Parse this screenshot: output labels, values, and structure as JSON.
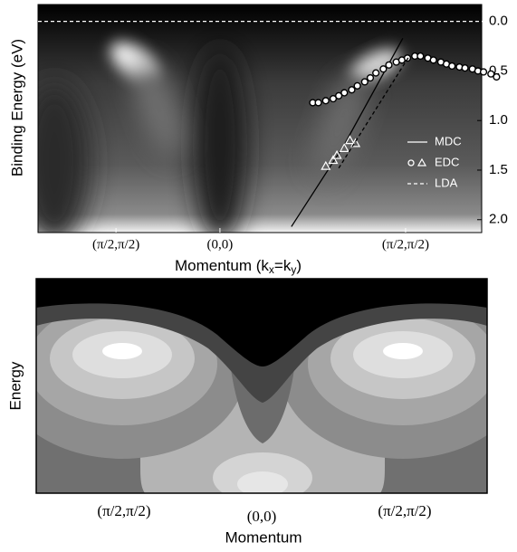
{
  "chart_data": [
    {
      "type": "scatter",
      "y_label": "Binding Energy (eV)",
      "x_label_parts": [
        "Momentum (k",
        "x",
        "=k",
        "y",
        ")"
      ],
      "xlim": [
        -0.98,
        1.41
      ],
      "xticks": [
        {
          "value": -0.56,
          "label": "(π/2,π/2)"
        },
        {
          "value": 0,
          "label": "(0,0)"
        },
        {
          "value": 1,
          "label": "(π/2,π/2)"
        }
      ],
      "ylim": [
        -0.17,
        2.13
      ],
      "yticks": [
        {
          "value": 0,
          "label": "0.0"
        },
        0.5,
        {
          "value": 1,
          "label": "1.0"
        },
        1.5,
        {
          "value": 2,
          "label": "2.0"
        }
      ],
      "y_inverted": true,
      "y_axis_side": "right",
      "fermi_line": true,
      "legend": "lower right",
      "series": [
        {
          "name": "MDC",
          "style": "solid",
          "color": "#000000",
          "x": [
            0.385,
            0.668,
            0.985
          ],
          "values": [
            2.07,
            1.25,
            0.17
          ]
        },
        {
          "name": "EDC",
          "style": "markers",
          "color": "#000000",
          "branches": [
            {
              "marker": "circle",
              "x": [
                0.5,
                0.53,
                0.57,
                0.61,
                0.64,
                0.67,
                0.71,
                0.74,
                0.78,
                0.81,
                0.84,
                0.88,
                0.91,
                0.95,
                0.98,
                1.01,
                1.05,
                1.08,
                1.12,
                1.15,
                1.19,
                1.22,
                1.25,
                1.29,
                1.32,
                1.36,
                1.39,
                1.42,
                1.46,
                1.49
              ],
              "values": [
                0.82,
                0.82,
                0.8,
                0.78,
                0.75,
                0.72,
                0.69,
                0.65,
                0.61,
                0.57,
                0.52,
                0.48,
                0.44,
                0.41,
                0.39,
                0.37,
                0.35,
                0.35,
                0.37,
                0.39,
                0.41,
                0.43,
                0.45,
                0.46,
                0.47,
                0.48,
                0.5,
                0.51,
                0.53,
                0.56
              ]
            },
            {
              "marker": "triangle",
              "x": [
                0.57,
                0.61,
                0.63,
                0.67,
                0.7,
                0.73
              ],
              "values": [
                1.46,
                1.4,
                1.35,
                1.28,
                1.2,
                1.23
              ]
            }
          ]
        },
        {
          "name": "LDA",
          "style": "dashed",
          "color": "#000000",
          "x": [
            0.64,
            1.02
          ],
          "values": [
            1.48,
            0.35
          ]
        }
      ]
    },
    {
      "type": "image",
      "y_label": "Energy",
      "x_label": "Momentum",
      "categories": [
        "(π/2,π/2)",
        "(0,0)",
        "(π/2,π/2)"
      ]
    }
  ]
}
